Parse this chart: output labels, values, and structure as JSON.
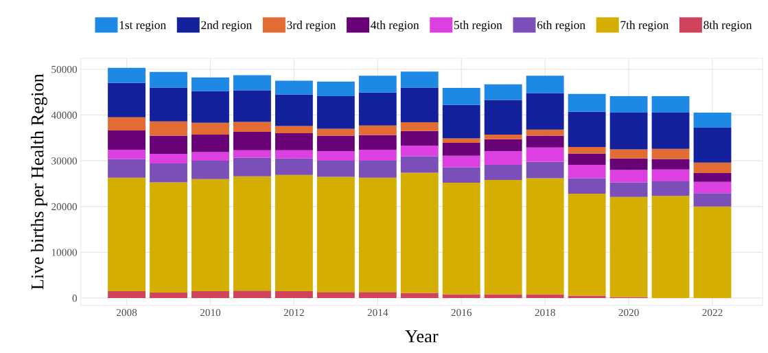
{
  "chart_data": {
    "type": "bar",
    "stacked": true,
    "xlabel": "Year",
    "ylabel": "Live births per Health Region",
    "x": [
      2008,
      2009,
      2010,
      2011,
      2012,
      2013,
      2014,
      2015,
      2016,
      2017,
      2018,
      2019,
      2020,
      2021,
      2022
    ],
    "xlim": [
      2006.9,
      2023.2
    ],
    "xticks": [
      2008,
      2010,
      2012,
      2014,
      2016,
      2018,
      2020,
      2022
    ],
    "ylim": [
      -1600,
      52400
    ],
    "yticks": [
      0,
      10000,
      20000,
      30000,
      40000,
      50000
    ],
    "grid": true,
    "legend": "top",
    "series": [
      {
        "name": "8th region",
        "color": "#d0435a",
        "values": [
          1500,
          1200,
          1500,
          1600,
          1500,
          1300,
          1300,
          1100,
          800,
          800,
          800,
          500,
          200,
          0,
          0
        ]
      },
      {
        "name": "7th region",
        "color": "#d4ae00",
        "values": [
          24800,
          24100,
          24500,
          25000,
          25400,
          25200,
          25000,
          26300,
          24400,
          25000,
          25400,
          22300,
          21900,
          22300,
          20000
        ]
      },
      {
        "name": "6th region",
        "color": "#7a50b8",
        "values": [
          4100,
          4100,
          4000,
          4100,
          3600,
          3500,
          3700,
          3600,
          3400,
          3300,
          3600,
          3400,
          3200,
          3200,
          2900
        ]
      },
      {
        "name": "5th region",
        "color": "#dd40e0",
        "values": [
          2000,
          2100,
          1900,
          1600,
          1800,
          2100,
          2400,
          2300,
          2500,
          3000,
          3100,
          2900,
          2700,
          2600,
          2500
        ]
      },
      {
        "name": "4th region",
        "color": "#6a0277",
        "values": [
          4200,
          4000,
          3800,
          4000,
          3700,
          3400,
          3200,
          3200,
          2800,
          2600,
          2600,
          2500,
          2500,
          2300,
          1900
        ]
      },
      {
        "name": "3rd region",
        "color": "#e36c35",
        "values": [
          2900,
          3100,
          2600,
          2200,
          1600,
          1500,
          2100,
          1900,
          1000,
          1000,
          1300,
          1400,
          2000,
          2200,
          2300
        ]
      },
      {
        "name": "2nd region",
        "color": "#13219c",
        "values": [
          7500,
          7400,
          6900,
          6900,
          6900,
          7100,
          7200,
          7600,
          7300,
          7600,
          8000,
          7700,
          8000,
          7900,
          7600
        ]
      },
      {
        "name": "1st region",
        "color": "#1e88e5",
        "values": [
          3300,
          3400,
          3000,
          3300,
          3000,
          3200,
          3700,
          3500,
          3700,
          3400,
          3800,
          3900,
          3600,
          3600,
          3300
        ]
      }
    ]
  }
}
